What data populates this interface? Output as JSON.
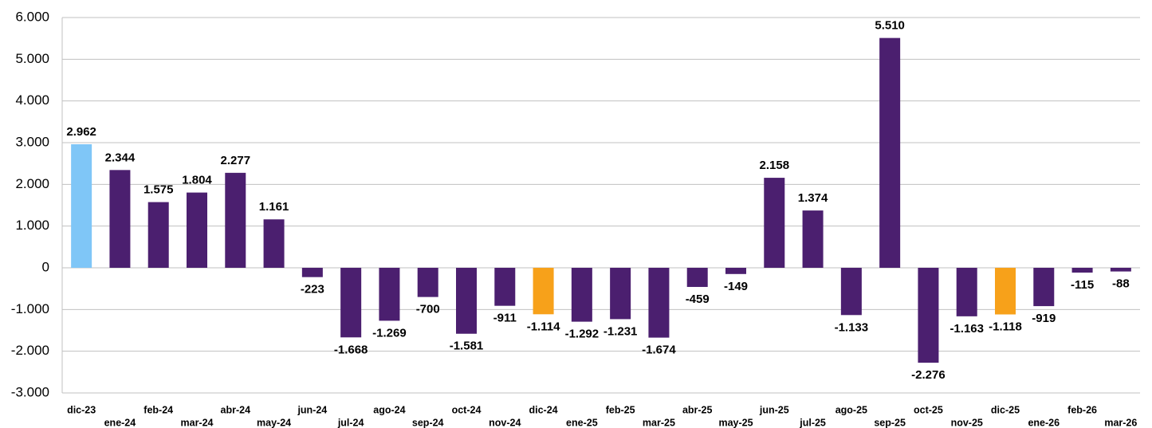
{
  "chart_data": {
    "type": "bar",
    "categories": [
      "dic-23",
      "ene-24",
      "feb-24",
      "mar-24",
      "abr-24",
      "may-24",
      "jun-24",
      "jul-24",
      "ago-24",
      "sep-24",
      "oct-24",
      "nov-24",
      "dic-24",
      "ene-25",
      "feb-25",
      "mar-25",
      "abr-25",
      "may-25",
      "jun-25",
      "jul-25",
      "ago-25",
      "sep-25",
      "oct-25",
      "nov-25",
      "dic-25",
      "ene-26",
      "feb-26",
      "mar-26"
    ],
    "values": [
      2962,
      2344,
      1575,
      1804,
      2277,
      1161,
      -223,
      -1668,
      -1269,
      -700,
      -1581,
      -911,
      -1114,
      -1292,
      -1231,
      -1674,
      -459,
      -149,
      2158,
      1374,
      -1133,
      5510,
      -2276,
      -1163,
      -1118,
      -919,
      -115,
      -88
    ],
    "value_labels": [
      "2.962",
      "2.344",
      "1.575",
      "1.804",
      "2.277",
      "1.161",
      "-223",
      "-1.668",
      "-1.269",
      "-700",
      "-1.581",
      "-911",
      "-1.114",
      "-1.292",
      "-1.231",
      "-1.674",
      "-459",
      "-149",
      "2.158",
      "1.374",
      "-1.133",
      "5.510",
      "-2.276",
      "-1.163",
      "-1.118",
      "-919",
      "-115",
      "-88"
    ],
    "colors": [
      "#7fc6f7",
      "#4b1f6f",
      "#4b1f6f",
      "#4b1f6f",
      "#4b1f6f",
      "#4b1f6f",
      "#4b1f6f",
      "#4b1f6f",
      "#4b1f6f",
      "#4b1f6f",
      "#4b1f6f",
      "#4b1f6f",
      "#f7a11a",
      "#4b1f6f",
      "#4b1f6f",
      "#4b1f6f",
      "#4b1f6f",
      "#4b1f6f",
      "#4b1f6f",
      "#4b1f6f",
      "#4b1f6f",
      "#4b1f6f",
      "#4b1f6f",
      "#4b1f6f",
      "#f7a11a",
      "#4b1f6f",
      "#4b1f6f",
      "#4b1f6f"
    ],
    "ylim": [
      -3000,
      6000
    ],
    "yticks": [
      {
        "value": -3000,
        "label": "-3.000"
      },
      {
        "value": -2000,
        "label": "-2.000"
      },
      {
        "value": -1000,
        "label": "-1.000"
      },
      0,
      {
        "value": 1000,
        "label": "1.000"
      },
      {
        "value": 2000,
        "label": "2.000"
      },
      {
        "value": 3000,
        "label": "3.000"
      },
      {
        "value": 4000,
        "label": "4.000"
      },
      {
        "value": 5000,
        "label": "5.000"
      },
      {
        "value": 6000,
        "label": "6.000"
      }
    ],
    "grid": true
  }
}
